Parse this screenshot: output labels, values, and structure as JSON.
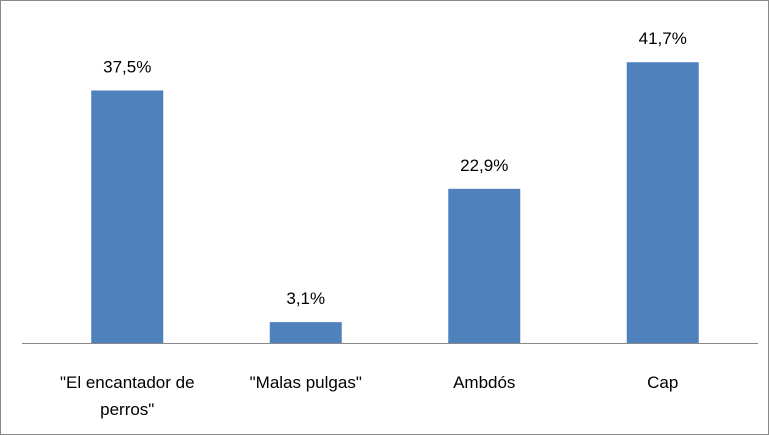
{
  "chart_data": {
    "type": "bar",
    "categories": [
      "\"El encantador de perros\"",
      "\"Malas pulgas\"",
      "Ambdós",
      "Cap"
    ],
    "values": [
      37.5,
      3.1,
      22.9,
      41.7
    ],
    "value_labels": [
      "37,5%",
      "3,1%",
      "22,9%",
      "41,7%"
    ],
    "color": "#4f81bd",
    "ylim": [
      0,
      45
    ]
  }
}
